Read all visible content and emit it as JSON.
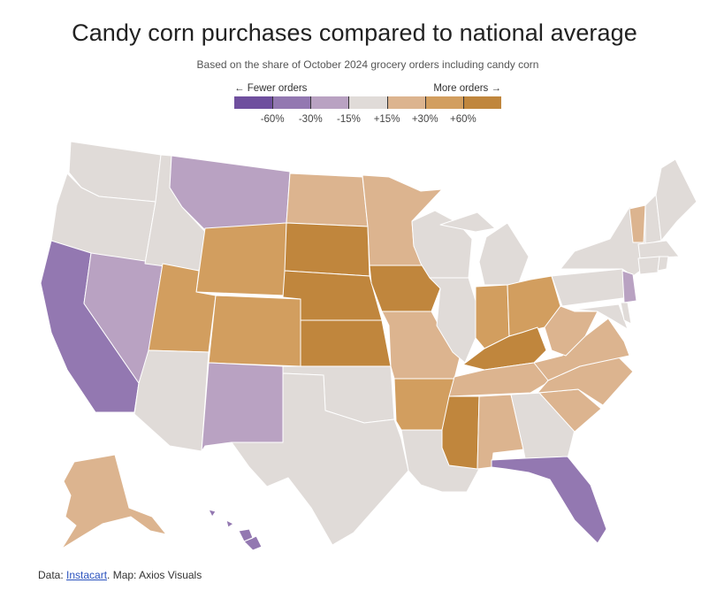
{
  "title": "Candy corn purchases compared to national average",
  "subtitle": "Based on the share of October 2024 grocery orders including candy corn",
  "legend": {
    "left_label": "← Fewer orders",
    "right_label": "More orders →",
    "ticks": [
      "-60%",
      "-30%",
      "-15%",
      "+15%",
      "+30%",
      "+60%"
    ],
    "colors": [
      "#6f4f9e",
      "#9378b1",
      "#b9a2c2",
      "#e0dbd8",
      "#dcb48f",
      "#d29e5f",
      "#c0863d"
    ]
  },
  "categories": {
    "lt_neg60": "#6f4f9e",
    "neg60_neg30": "#9378b1",
    "neg30_neg15": "#b9a2c2",
    "neutral": "#e0dbd8",
    "pos15_pos30": "#dcb48f",
    "pos30_pos60": "#d29e5f",
    "gt_pos60": "#c0863d"
  },
  "source": {
    "prefix": "Data: ",
    "link": "Instacart",
    "suffix": ". Map: Axios Visuals"
  }
}
